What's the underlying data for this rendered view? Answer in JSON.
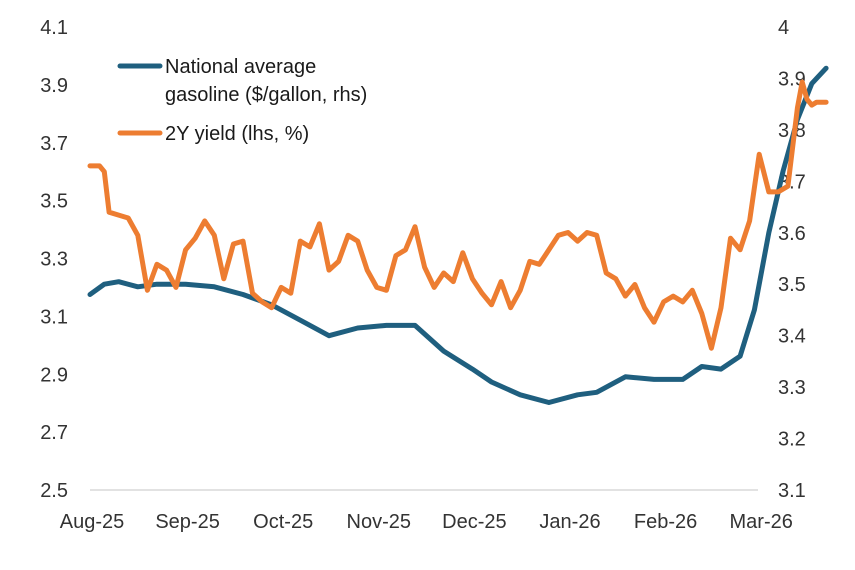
{
  "chart_data": {
    "type": "line",
    "title": "",
    "xlabel": "",
    "ylabel_left": "",
    "ylabel_right": "",
    "x_tick_labels": [
      "Aug-25",
      "Sep-25",
      "Oct-25",
      "Nov-25",
      "Dec-25",
      "Jan-26",
      "Feb-26",
      "Mar-26"
    ],
    "y_left": {
      "min": 2.5,
      "max": 4.1,
      "ticks": [
        "2.5",
        "2.7",
        "2.9",
        "3.1",
        "3.3",
        "3.5",
        "3.7",
        "3.9",
        "4.1"
      ]
    },
    "y_right": {
      "min": 3.1,
      "max": 4.0,
      "ticks": [
        "3.1",
        "3.2",
        "3.3",
        "3.4",
        "3.5",
        "3.6",
        "3.7",
        "3.8",
        "3.9",
        "4"
      ]
    },
    "legend": {
      "position": "top-left",
      "entries": [
        {
          "label_line1": "National average",
          "label_line2": "gasoline  ($/gallon, rhs)",
          "color": "#1f5f7f"
        },
        {
          "label_line1": "2Y yield (lhs, %)",
          "label_line2": "",
          "color": "#ed7d31"
        }
      ]
    },
    "series": [
      {
        "name": "National average gasoline ($/gallon, rhs)",
        "axis": "right",
        "color": "#1f5f7f",
        "x": [
          0,
          0.15,
          0.3,
          0.5,
          0.7,
          1,
          1.3,
          1.6,
          1.9,
          2.2,
          2.5,
          2.8,
          3.1,
          3.4,
          3.7,
          4,
          4.2,
          4.5,
          4.8,
          5.1,
          5.3,
          5.6,
          5.9,
          6.2,
          6.4,
          6.6,
          6.8,
          6.95,
          7.1,
          7.25,
          7.4,
          7.55,
          7.7
        ],
        "values": [
          3.48,
          3.5,
          3.505,
          3.495,
          3.5,
          3.5,
          3.495,
          3.48,
          3.46,
          3.43,
          3.4,
          3.415,
          3.42,
          3.42,
          3.37,
          3.335,
          3.31,
          3.285,
          3.27,
          3.285,
          3.29,
          3.32,
          3.315,
          3.315,
          3.34,
          3.335,
          3.36,
          3.45,
          3.6,
          3.72,
          3.82,
          3.89,
          3.92
        ]
      },
      {
        "name": "2Y yield (lhs, %)",
        "axis": "left",
        "color": "#ed7d31",
        "x": [
          0,
          0.05,
          0.1,
          0.15,
          0.2,
          0.3,
          0.4,
          0.5,
          0.6,
          0.7,
          0.8,
          0.9,
          1,
          1.1,
          1.2,
          1.3,
          1.4,
          1.5,
          1.6,
          1.7,
          1.8,
          1.9,
          2,
          2.1,
          2.2,
          2.3,
          2.4,
          2.5,
          2.6,
          2.7,
          2.8,
          2.9,
          3,
          3.1,
          3.2,
          3.3,
          3.4,
          3.5,
          3.6,
          3.7,
          3.8,
          3.9,
          4,
          4.1,
          4.2,
          4.3,
          4.4,
          4.5,
          4.6,
          4.7,
          4.8,
          4.9,
          5,
          5.1,
          5.2,
          5.3,
          5.4,
          5.5,
          5.6,
          5.7,
          5.8,
          5.9,
          6,
          6.1,
          6.2,
          6.3,
          6.4,
          6.5,
          6.6,
          6.7,
          6.8,
          6.9,
          7,
          7.1,
          7.2,
          7.3,
          7.4,
          7.45,
          7.5,
          7.55,
          7.6,
          7.65,
          7.7
        ],
        "values": [
          3.62,
          3.62,
          3.62,
          3.6,
          3.46,
          3.45,
          3.44,
          3.38,
          3.19,
          3.28,
          3.26,
          3.2,
          3.33,
          3.37,
          3.43,
          3.38,
          3.23,
          3.35,
          3.36,
          3.18,
          3.15,
          3.13,
          3.2,
          3.18,
          3.36,
          3.34,
          3.42,
          3.26,
          3.29,
          3.38,
          3.36,
          3.26,
          3.2,
          3.19,
          3.31,
          3.33,
          3.41,
          3.27,
          3.2,
          3.25,
          3.22,
          3.32,
          3.23,
          3.18,
          3.14,
          3.22,
          3.13,
          3.19,
          3.29,
          3.28,
          3.33,
          3.38,
          3.39,
          3.36,
          3.39,
          3.38,
          3.25,
          3.23,
          3.17,
          3.21,
          3.13,
          3.08,
          3.15,
          3.17,
          3.15,
          3.19,
          3.11,
          2.99,
          3.13,
          3.37,
          3.33,
          3.43,
          3.66,
          3.53,
          3.53,
          3.55,
          3.82,
          3.91,
          3.85,
          3.83,
          3.84,
          3.84,
          3.84
        ]
      }
    ]
  }
}
